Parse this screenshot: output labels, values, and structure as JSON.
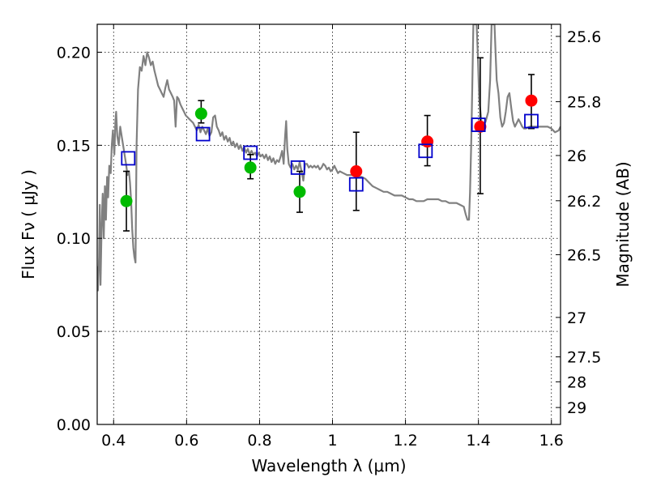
{
  "chart_data": {
    "type": "scatter",
    "xlabel": "Wavelength  λ (μm)",
    "ylabel": "Flux  Fν  ( μJy )",
    "y2label": "Magnitude (AB)",
    "xlim": [
      0.355,
      1.625
    ],
    "ylim": [
      0.0,
      0.215
    ],
    "grid": true,
    "x_ticks": [
      0.4,
      0.6,
      0.8,
      1.0,
      1.2,
      1.4,
      1.6
    ],
    "x_tick_labels": [
      "0.4",
      "0.6",
      "0.8",
      "1",
      "1.2",
      "1.4",
      "1.6"
    ],
    "y_ticks": [
      0.0,
      0.05,
      0.1,
      0.15,
      0.2
    ],
    "y_tick_labels": [
      "0.00",
      "0.05",
      "0.10",
      "0.15",
      "0.20"
    ],
    "y2_ticks": [
      {
        "label": "25.6",
        "flux": 0.2085
      },
      {
        "label": "25.8",
        "flux": 0.1734
      },
      {
        "label": "26",
        "flux": 0.1445
      },
      {
        "label": "26.2",
        "flux": 0.1202
      },
      {
        "label": "26.5",
        "flux": 0.0912
      },
      {
        "label": "27",
        "flux": 0.0575
      },
      {
        "label": "27.5",
        "flux": 0.0363
      },
      {
        "label": "28",
        "flux": 0.0229
      },
      {
        "label": "29",
        "flux": 0.0091
      }
    ],
    "colors": {
      "model": "#808080",
      "green": "#00bb00",
      "red": "#ff0000",
      "box": "#0000cc",
      "error": "#000000"
    },
    "series": [
      {
        "kind": "line",
        "color": "#808080",
        "points": [
          [
            0.355,
            0.085
          ],
          [
            0.357,
            0.072
          ],
          [
            0.36,
            0.09
          ],
          [
            0.362,
            0.118
          ],
          [
            0.364,
            0.075
          ],
          [
            0.367,
            0.105
          ],
          [
            0.37,
            0.124
          ],
          [
            0.373,
            0.1
          ],
          [
            0.376,
            0.128
          ],
          [
            0.379,
            0.11
          ],
          [
            0.382,
            0.133
          ],
          [
            0.385,
            0.122
          ],
          [
            0.388,
            0.139
          ],
          [
            0.392,
            0.135
          ],
          [
            0.395,
            0.15
          ],
          [
            0.398,
            0.158
          ],
          [
            0.4,
            0.15
          ],
          [
            0.402,
            0.145
          ],
          [
            0.405,
            0.163
          ],
          [
            0.407,
            0.168
          ],
          [
            0.41,
            0.155
          ],
          [
            0.414,
            0.15
          ],
          [
            0.418,
            0.16
          ],
          [
            0.422,
            0.155
          ],
          [
            0.426,
            0.15
          ],
          [
            0.43,
            0.145
          ],
          [
            0.434,
            0.14
          ],
          [
            0.438,
            0.134
          ],
          [
            0.442,
            0.136
          ],
          [
            0.445,
            0.13
          ],
          [
            0.448,
            0.12
          ],
          [
            0.451,
            0.105
          ],
          [
            0.454,
            0.095
          ],
          [
            0.457,
            0.09
          ],
          [
            0.46,
            0.087
          ],
          [
            0.463,
            0.15
          ],
          [
            0.467,
            0.18
          ],
          [
            0.472,
            0.192
          ],
          [
            0.477,
            0.19
          ],
          [
            0.482,
            0.198
          ],
          [
            0.487,
            0.193
          ],
          [
            0.492,
            0.2
          ],
          [
            0.497,
            0.197
          ],
          [
            0.502,
            0.193
          ],
          [
            0.507,
            0.195
          ],
          [
            0.512,
            0.19
          ],
          [
            0.517,
            0.186
          ],
          [
            0.522,
            0.182
          ],
          [
            0.527,
            0.18
          ],
          [
            0.532,
            0.178
          ],
          [
            0.537,
            0.176
          ],
          [
            0.542,
            0.181
          ],
          [
            0.547,
            0.185
          ],
          [
            0.552,
            0.18
          ],
          [
            0.557,
            0.178
          ],
          [
            0.562,
            0.176
          ],
          [
            0.566,
            0.174
          ],
          [
            0.57,
            0.16
          ],
          [
            0.574,
            0.176
          ],
          [
            0.578,
            0.175
          ],
          [
            0.583,
            0.172
          ],
          [
            0.588,
            0.17
          ],
          [
            0.593,
            0.168
          ],
          [
            0.598,
            0.166
          ],
          [
            0.603,
            0.165
          ],
          [
            0.608,
            0.164
          ],
          [
            0.613,
            0.163
          ],
          [
            0.618,
            0.162
          ],
          [
            0.623,
            0.16
          ],
          [
            0.628,
            0.158
          ],
          [
            0.633,
            0.161
          ],
          [
            0.638,
            0.157
          ],
          [
            0.643,
            0.16
          ],
          [
            0.648,
            0.158
          ],
          [
            0.653,
            0.156
          ],
          [
            0.658,
            0.159
          ],
          [
            0.663,
            0.155
          ],
          [
            0.668,
            0.157
          ],
          [
            0.673,
            0.165
          ],
          [
            0.678,
            0.166
          ],
          [
            0.683,
            0.16
          ],
          [
            0.688,
            0.158
          ],
          [
            0.693,
            0.155
          ],
          [
            0.698,
            0.157
          ],
          [
            0.703,
            0.153
          ],
          [
            0.708,
            0.155
          ],
          [
            0.713,
            0.152
          ],
          [
            0.718,
            0.154
          ],
          [
            0.723,
            0.15
          ],
          [
            0.728,
            0.152
          ],
          [
            0.733,
            0.149
          ],
          [
            0.738,
            0.151
          ],
          [
            0.743,
            0.148
          ],
          [
            0.748,
            0.15
          ],
          [
            0.753,
            0.147
          ],
          [
            0.758,
            0.149
          ],
          [
            0.763,
            0.146
          ],
          [
            0.768,
            0.148
          ],
          [
            0.773,
            0.145
          ],
          [
            0.778,
            0.147
          ],
          [
            0.783,
            0.145
          ],
          [
            0.788,
            0.146
          ],
          [
            0.793,
            0.144
          ],
          [
            0.798,
            0.146
          ],
          [
            0.803,
            0.144
          ],
          [
            0.808,
            0.145
          ],
          [
            0.813,
            0.143
          ],
          [
            0.818,
            0.145
          ],
          [
            0.823,
            0.142
          ],
          [
            0.828,
            0.144
          ],
          [
            0.833,
            0.141
          ],
          [
            0.838,
            0.143
          ],
          [
            0.843,
            0.14
          ],
          [
            0.848,
            0.142
          ],
          [
            0.853,
            0.141
          ],
          [
            0.858,
            0.144
          ],
          [
            0.862,
            0.147
          ],
          [
            0.866,
            0.14
          ],
          [
            0.87,
            0.155
          ],
          [
            0.873,
            0.163
          ],
          [
            0.876,
            0.148
          ],
          [
            0.88,
            0.14
          ],
          [
            0.885,
            0.138
          ],
          [
            0.89,
            0.14
          ],
          [
            0.895,
            0.137
          ],
          [
            0.9,
            0.139
          ],
          [
            0.905,
            0.137
          ],
          [
            0.91,
            0.141
          ],
          [
            0.915,
            0.136
          ],
          [
            0.92,
            0.131
          ],
          [
            0.925,
            0.14
          ],
          [
            0.93,
            0.14
          ],
          [
            0.935,
            0.138
          ],
          [
            0.94,
            0.139
          ],
          [
            0.945,
            0.138
          ],
          [
            0.95,
            0.139
          ],
          [
            0.955,
            0.138
          ],
          [
            0.96,
            0.139
          ],
          [
            0.965,
            0.137
          ],
          [
            0.97,
            0.138
          ],
          [
            0.975,
            0.14
          ],
          [
            0.98,
            0.139
          ],
          [
            0.985,
            0.137
          ],
          [
            0.99,
            0.138
          ],
          [
            0.995,
            0.136
          ],
          [
            1.0,
            0.137
          ],
          [
            1.005,
            0.139
          ],
          [
            1.01,
            0.137
          ],
          [
            1.015,
            0.135
          ],
          [
            1.02,
            0.136
          ],
          [
            1.03,
            0.135
          ],
          [
            1.04,
            0.134
          ],
          [
            1.05,
            0.134
          ],
          [
            1.06,
            0.134
          ],
          [
            1.07,
            0.133
          ],
          [
            1.08,
            0.133
          ],
          [
            1.09,
            0.132
          ],
          [
            1.1,
            0.13
          ],
          [
            1.11,
            0.128
          ],
          [
            1.12,
            0.127
          ],
          [
            1.13,
            0.126
          ],
          [
            1.14,
            0.125
          ],
          [
            1.15,
            0.125
          ],
          [
            1.16,
            0.124
          ],
          [
            1.17,
            0.123
          ],
          [
            1.18,
            0.123
          ],
          [
            1.19,
            0.123
          ],
          [
            1.2,
            0.122
          ],
          [
            1.21,
            0.121
          ],
          [
            1.22,
            0.121
          ],
          [
            1.23,
            0.12
          ],
          [
            1.24,
            0.12
          ],
          [
            1.25,
            0.12
          ],
          [
            1.26,
            0.121
          ],
          [
            1.27,
            0.121
          ],
          [
            1.28,
            0.121
          ],
          [
            1.29,
            0.121
          ],
          [
            1.3,
            0.12
          ],
          [
            1.31,
            0.12
          ],
          [
            1.32,
            0.119
          ],
          [
            1.33,
            0.119
          ],
          [
            1.34,
            0.119
          ],
          [
            1.35,
            0.118
          ],
          [
            1.36,
            0.117
          ],
          [
            1.365,
            0.113
          ],
          [
            1.37,
            0.11
          ],
          [
            1.374,
            0.11
          ],
          [
            1.377,
            0.125
          ],
          [
            1.38,
            0.15
          ],
          [
            1.383,
            0.18
          ],
          [
            1.386,
            0.215
          ],
          [
            1.395,
            0.215
          ],
          [
            1.398,
            0.2
          ],
          [
            1.402,
            0.175
          ],
          [
            1.408,
            0.163
          ],
          [
            1.414,
            0.16
          ],
          [
            1.42,
            0.163
          ],
          [
            1.427,
            0.168
          ],
          [
            1.432,
            0.185
          ],
          [
            1.436,
            0.215
          ],
          [
            1.444,
            0.215
          ],
          [
            1.447,
            0.2
          ],
          [
            1.45,
            0.185
          ],
          [
            1.455,
            0.178
          ],
          [
            1.46,
            0.165
          ],
          [
            1.465,
            0.16
          ],
          [
            1.47,
            0.162
          ],
          [
            1.475,
            0.168
          ],
          [
            1.48,
            0.176
          ],
          [
            1.485,
            0.178
          ],
          [
            1.49,
            0.17
          ],
          [
            1.495,
            0.163
          ],
          [
            1.5,
            0.16
          ],
          [
            1.505,
            0.162
          ],
          [
            1.51,
            0.164
          ],
          [
            1.515,
            0.162
          ],
          [
            1.52,
            0.16
          ],
          [
            1.525,
            0.159
          ],
          [
            1.53,
            0.159
          ],
          [
            1.54,
            0.16
          ],
          [
            1.55,
            0.16
          ],
          [
            1.56,
            0.16
          ],
          [
            1.57,
            0.16
          ],
          [
            1.58,
            0.16
          ],
          [
            1.59,
            0.16
          ],
          [
            1.6,
            0.159
          ],
          [
            1.61,
            0.157
          ],
          [
            1.62,
            0.158
          ],
          [
            1.625,
            0.16
          ]
        ]
      },
      {
        "kind": "scatter",
        "marker": "circle",
        "color": "#00bb00",
        "points": [
          {
            "x": 0.435,
            "y": 0.12,
            "err": [
              0.104,
              0.136
            ]
          },
          {
            "x": 0.64,
            "y": 0.167,
            "err": [
              0.162,
              0.174
            ]
          },
          {
            "x": 0.775,
            "y": 0.138,
            "err": [
              0.132,
              0.145
            ]
          },
          {
            "x": 0.91,
            "y": 0.125,
            "err": [
              0.114,
              0.136
            ]
          }
        ]
      },
      {
        "kind": "scatter",
        "marker": "circle",
        "color": "#ff0000",
        "points": [
          {
            "x": 1.065,
            "y": 0.136,
            "err": [
              0.115,
              0.157
            ]
          },
          {
            "x": 1.26,
            "y": 0.152,
            "err": [
              0.139,
              0.166
            ]
          },
          {
            "x": 1.405,
            "y": 0.16,
            "err": [
              0.124,
              0.197
            ]
          },
          {
            "x": 1.545,
            "y": 0.174,
            "err": [
              0.159,
              0.188
            ]
          }
        ]
      },
      {
        "kind": "scatter",
        "marker": "square-open",
        "color": "#0000cc",
        "points": [
          {
            "x": 0.44,
            "y": 0.143
          },
          {
            "x": 0.645,
            "y": 0.156
          },
          {
            "x": 0.775,
            "y": 0.146
          },
          {
            "x": 0.905,
            "y": 0.138
          },
          {
            "x": 1.065,
            "y": 0.129
          },
          {
            "x": 1.255,
            "y": 0.147
          },
          {
            "x": 1.4,
            "y": 0.161
          },
          {
            "x": 1.545,
            "y": 0.163
          }
        ]
      }
    ]
  }
}
